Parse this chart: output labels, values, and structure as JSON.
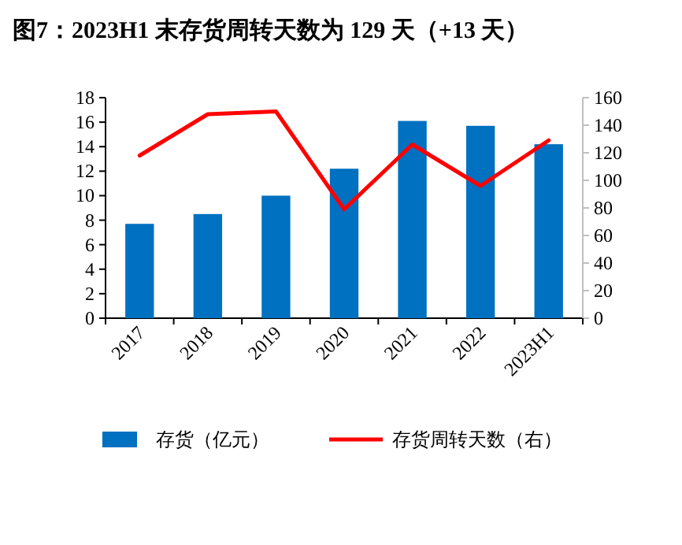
{
  "chart_data": {
    "type": "bar",
    "title": "图7：2023H1 末存货周转天数为 129 天（+13 天）",
    "categories": [
      "2017",
      "2018",
      "2019",
      "2020",
      "2021",
      "2022",
      "2023H1"
    ],
    "series": [
      {
        "name": "存货（亿元）",
        "color": "#0070c0",
        "values": [
          7.7,
          8.5,
          10.0,
          12.2,
          16.1,
          15.7,
          14.2
        ]
      },
      {
        "name": "存货周转天数（右）",
        "type": "line",
        "axis": "y2",
        "color": "#ff0000",
        "values": [
          118,
          148,
          150,
          79,
          126,
          96,
          129
        ]
      }
    ],
    "ylim": [
      0,
      18
    ],
    "yticks": [
      0,
      2,
      4,
      6,
      8,
      10,
      12,
      14,
      16,
      18
    ],
    "y2lim": [
      0,
      160
    ],
    "y2ticks": [
      0,
      20,
      40,
      60,
      80,
      100,
      120,
      140,
      160
    ],
    "grid": false,
    "legend": "bottom",
    "marker": "none",
    "line_style": "solid"
  }
}
